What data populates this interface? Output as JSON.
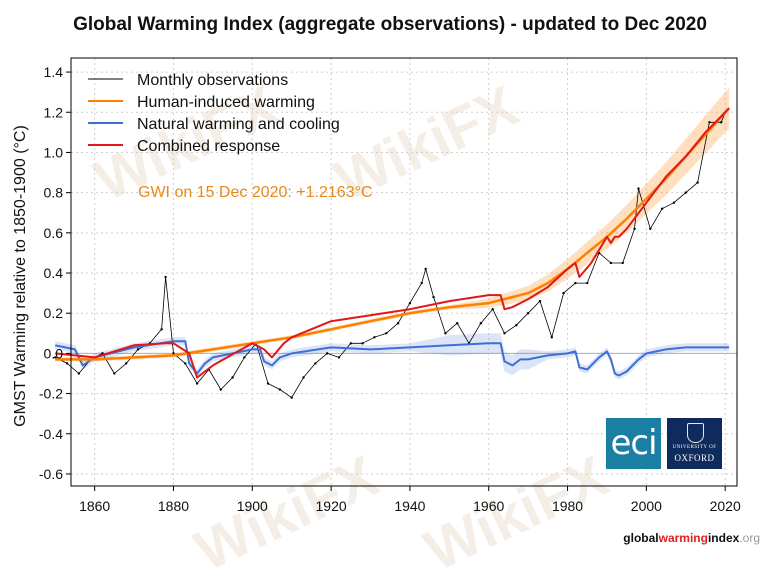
{
  "chart": {
    "title": "Global Warming Index (aggregate observations) - updated to Dec 2020",
    "annotation": "GWI on 15 Dec 2020: +1.2163°C",
    "ylabel": "GMST Warming relative to 1850-1900 (°C)",
    "footer_parts": [
      "global",
      "warming",
      "index",
      ".org"
    ],
    "logo_eci_text": "eci",
    "logo_oxford_small": "UNIVERSITY OF",
    "logo_oxford_text": "OXFORD",
    "watermark_text": "WikiFX",
    "colors": {
      "observations": "#000000",
      "human": "#ff8000",
      "natural": "#3f6fd6",
      "combined": "#e01818",
      "annotation": "#e88a1a",
      "eci": "#1b7fa3",
      "oxford": "#0f2a5c"
    }
  },
  "chart_data": {
    "type": "line",
    "xlim": [
      1854,
      2023
    ],
    "ylim": [
      -0.66,
      1.47
    ],
    "x_ticks": [
      1860,
      1880,
      1900,
      1920,
      1940,
      1960,
      1980,
      2000,
      2020
    ],
    "y_ticks": [
      -0.6,
      -0.4,
      -0.2,
      0.0,
      0.2,
      0.4,
      0.6,
      0.8,
      1.0,
      1.2,
      1.4
    ],
    "y_tick_labels": [
      "-0.6",
      "-0.4",
      "-0.2",
      "0.0",
      "0.2",
      "0.4",
      "0.6",
      "0.8",
      "1.0",
      "1.2",
      "1.4"
    ],
    "grid": true,
    "legend_position": "top-left",
    "series": [
      {
        "name": "Monthly observations",
        "key": "observations",
        "x": [
          1850,
          1853,
          1856,
          1859,
          1862,
          1865,
          1868,
          1871,
          1874,
          1877,
          1878,
          1880,
          1883,
          1886,
          1889,
          1892,
          1895,
          1898,
          1901,
          1904,
          1907,
          1910,
          1913,
          1916,
          1919,
          1922,
          1925,
          1928,
          1931,
          1934,
          1937,
          1940,
          1943,
          1944,
          1946,
          1949,
          1952,
          1955,
          1958,
          1961,
          1964,
          1967,
          1970,
          1973,
          1976,
          1979,
          1982,
          1985,
          1988,
          1991,
          1994,
          1997,
          1998,
          2001,
          2004,
          2007,
          2010,
          2013,
          2016,
          2019,
          2020
        ],
        "y": [
          -0.02,
          -0.05,
          -0.1,
          -0.03,
          0.0,
          -0.1,
          -0.05,
          0.02,
          0.05,
          0.12,
          0.38,
          0.0,
          -0.05,
          -0.15,
          -0.08,
          -0.18,
          -0.12,
          -0.02,
          0.05,
          -0.15,
          -0.18,
          -0.22,
          -0.12,
          -0.05,
          0.0,
          -0.02,
          0.05,
          0.05,
          0.08,
          0.1,
          0.15,
          0.25,
          0.35,
          0.42,
          0.28,
          0.1,
          0.15,
          0.05,
          0.15,
          0.22,
          0.1,
          0.14,
          0.2,
          0.26,
          0.08,
          0.3,
          0.35,
          0.35,
          0.5,
          0.45,
          0.45,
          0.62,
          0.82,
          0.62,
          0.72,
          0.75,
          0.8,
          0.85,
          1.15,
          1.15,
          1.2
        ]
      },
      {
        "name": "Human-induced warming",
        "key": "human",
        "x": [
          1850,
          1860,
          1870,
          1880,
          1890,
          1900,
          1910,
          1920,
          1930,
          1940,
          1950,
          1960,
          1970,
          1975,
          1980,
          1985,
          1990,
          1995,
          2000,
          2005,
          2010,
          2015,
          2020,
          2021
        ],
        "y": [
          -0.03,
          -0.03,
          -0.02,
          -0.01,
          0.02,
          0.05,
          0.08,
          0.12,
          0.16,
          0.2,
          0.23,
          0.25,
          0.3,
          0.35,
          0.42,
          0.5,
          0.58,
          0.67,
          0.77,
          0.87,
          0.98,
          1.09,
          1.2,
          1.22
        ]
      },
      {
        "name": "Natural warming and cooling",
        "key": "natural",
        "x": [
          1850,
          1855,
          1857,
          1860,
          1870,
          1880,
          1883,
          1884,
          1886,
          1888,
          1890,
          1900,
          1902,
          1903,
          1905,
          1907,
          1910,
          1920,
          1930,
          1940,
          1950,
          1960,
          1963,
          1964,
          1966,
          1968,
          1970,
          1975,
          1980,
          1982,
          1983,
          1985,
          1988,
          1990,
          1991,
          1992,
          1993,
          1995,
          1998,
          2000,
          2005,
          2010,
          2015,
          2021
        ],
        "y": [
          0.04,
          0.02,
          -0.06,
          -0.02,
          0.03,
          0.06,
          0.06,
          -0.05,
          -0.1,
          -0.05,
          -0.02,
          0.02,
          0.02,
          -0.04,
          -0.06,
          -0.02,
          0.0,
          0.03,
          0.02,
          0.03,
          0.04,
          0.05,
          0.05,
          -0.04,
          -0.06,
          -0.03,
          -0.03,
          -0.01,
          0.0,
          0.01,
          -0.07,
          -0.08,
          -0.02,
          0.01,
          -0.03,
          -0.1,
          -0.11,
          -0.09,
          -0.03,
          0.0,
          0.02,
          0.03,
          0.03,
          0.03
        ]
      },
      {
        "name": "Combined response",
        "key": "combined",
        "x": [
          1850,
          1860,
          1870,
          1878,
          1880,
          1884,
          1886,
          1890,
          1900,
          1903,
          1905,
          1908,
          1910,
          1920,
          1930,
          1940,
          1950,
          1960,
          1963,
          1964,
          1966,
          1970,
          1975,
          1980,
          1982,
          1983,
          1986,
          1990,
          1991,
          1992,
          1993,
          1995,
          2000,
          2005,
          2010,
          2015,
          2020,
          2021
        ],
        "y": [
          0.0,
          -0.02,
          0.04,
          0.05,
          0.05,
          0.0,
          -0.12,
          -0.06,
          0.05,
          0.02,
          -0.02,
          0.05,
          0.08,
          0.16,
          0.19,
          0.22,
          0.26,
          0.29,
          0.29,
          0.22,
          0.23,
          0.27,
          0.33,
          0.42,
          0.45,
          0.38,
          0.45,
          0.58,
          0.55,
          0.58,
          0.58,
          0.62,
          0.75,
          0.88,
          0.98,
          1.1,
          1.2,
          1.22
        ]
      }
    ]
  }
}
